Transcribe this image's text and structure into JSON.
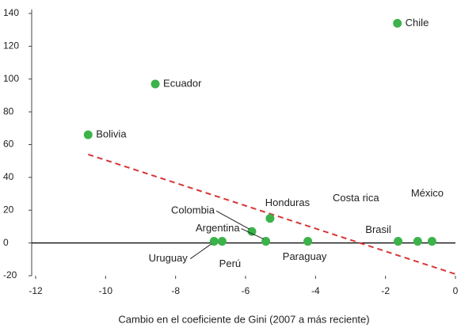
{
  "chart_data": {
    "type": "scatter",
    "x_label": "Cambio en el coeficiente de Gini (2007 a más reciente)",
    "labels": [
      "Chile",
      "Ecuador",
      "Bolivia",
      "Honduras",
      "Colombia",
      "Argentina",
      "Uruguay",
      "Perú",
      "Paraguay",
      "Brasil",
      "Costa rica",
      "México"
    ],
    "x": [
      -1.66,
      -8.58,
      -10.5,
      -5.3,
      -5.82,
      -5.42,
      -6.9,
      -6.67,
      -4.22,
      -1.64,
      -1.08,
      -0.67
    ],
    "values": [
      134,
      97,
      66,
      15,
      7,
      1,
      1,
      1,
      1,
      1,
      1,
      1
    ],
    "color": "#3cb34a",
    "trend": {
      "x": [
        -10.5,
        0
      ],
      "values": [
        54,
        -19
      ],
      "color": "#d93535"
    },
    "xlim": [
      -12,
      0
    ],
    "xticks": [
      -12,
      -10,
      -8,
      -6,
      -4,
      -2,
      0
    ],
    "ylim": [
      -20,
      140
    ],
    "yticks": [
      -20,
      0,
      20,
      40,
      60,
      80,
      100,
      120,
      140
    ]
  }
}
